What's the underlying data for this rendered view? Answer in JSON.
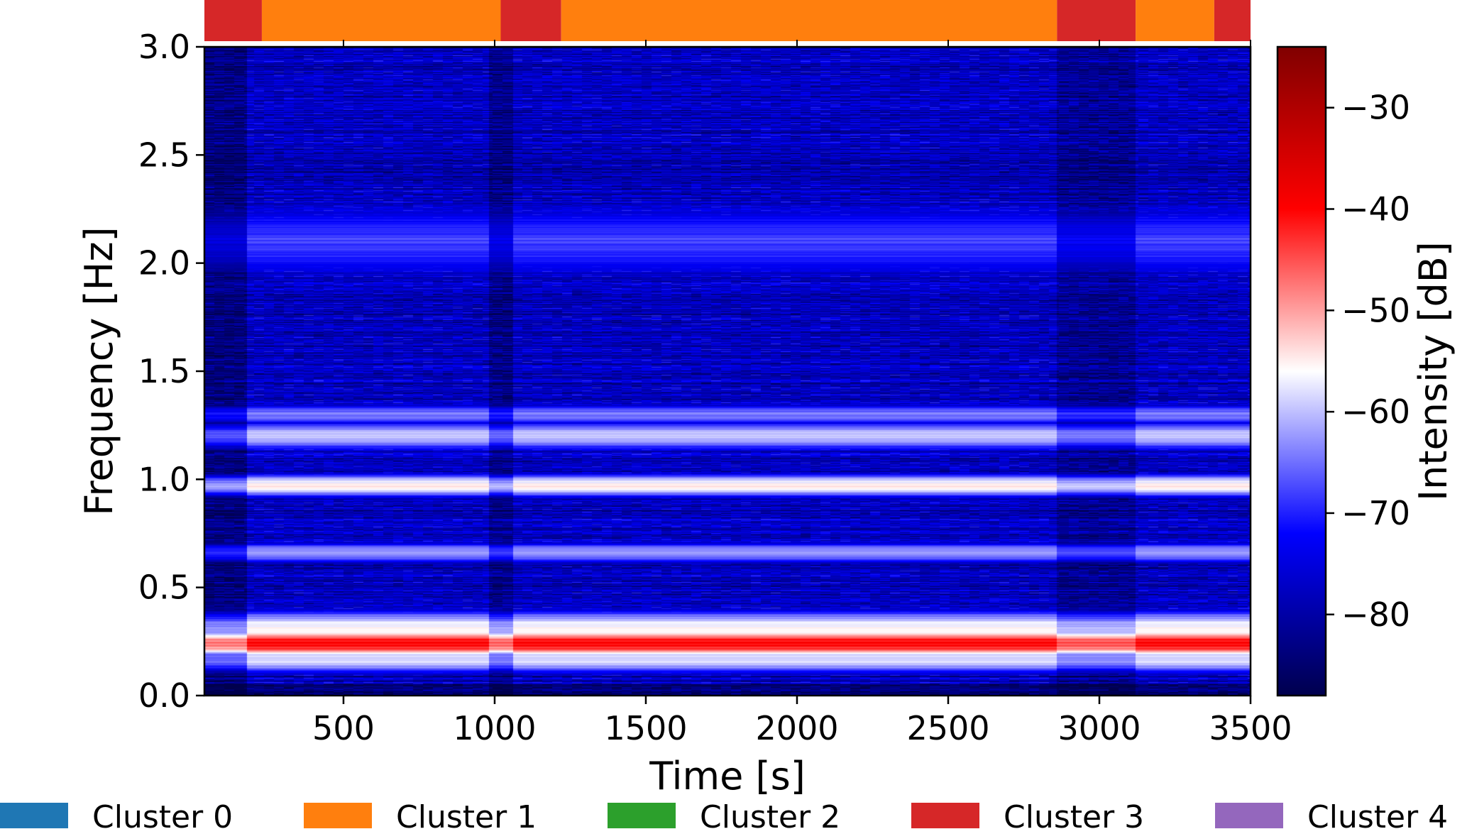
{
  "chart_data": {
    "type": "heatmap",
    "subtype": "spectrogram",
    "xlabel": "Time [s]",
    "ylabel": "Frequency [Hz]",
    "colorbar_label": "Intensity [dB]",
    "colormap": "seismic",
    "xlim": [
      40,
      3500
    ],
    "ylim": [
      0,
      3.0
    ],
    "color_range": [
      -88,
      -24
    ],
    "x_ticks": [
      500,
      1000,
      1500,
      2000,
      2500,
      3000,
      3500
    ],
    "y_ticks": [
      0.0,
      0.5,
      1.0,
      1.5,
      2.0,
      2.5,
      3.0
    ],
    "colorbar_ticks": [
      -80,
      -70,
      -60,
      -50,
      -40,
      -30
    ],
    "x_tick_labels": [
      "500",
      "1000",
      "1500",
      "2000",
      "2500",
      "3000",
      "3500"
    ],
    "y_tick_labels": [
      "0.0",
      "0.5",
      "1.0",
      "1.5",
      "2.0",
      "2.5",
      "3.0"
    ],
    "colorbar_tick_labels": [
      "−80",
      "−70",
      "−60",
      "−50",
      "−40",
      "−30"
    ],
    "bands": [
      {
        "freq": 0.24,
        "db": -40,
        "width": 0.03
      },
      {
        "freq": 0.3,
        "db": -55,
        "width": 0.05
      },
      {
        "freq": 0.17,
        "db": -58,
        "width": 0.04
      },
      {
        "freq": 0.97,
        "db": -55,
        "width": 0.03
      },
      {
        "freq": 0.66,
        "db": -62,
        "width": 0.03
      },
      {
        "freq": 1.2,
        "db": -60,
        "width": 0.04
      },
      {
        "freq": 1.3,
        "db": -64,
        "width": 0.03
      },
      {
        "freq": 2.1,
        "db": -68,
        "width": 0.12
      }
    ],
    "background_db": -78,
    "cluster_strip": [
      {
        "start": 40,
        "end": 230,
        "cluster": 3
      },
      {
        "start": 230,
        "end": 1020,
        "cluster": 1
      },
      {
        "start": 1020,
        "end": 1220,
        "cluster": 3
      },
      {
        "start": 1220,
        "end": 2860,
        "cluster": 1
      },
      {
        "start": 2860,
        "end": 3120,
        "cluster": 3
      },
      {
        "start": 3120,
        "end": 3380,
        "cluster": 1
      },
      {
        "start": 3380,
        "end": 3500,
        "cluster": 3
      }
    ],
    "legend": {
      "placement": "bottom",
      "entries": [
        {
          "label": "Cluster 0",
          "color": "#1f77b4"
        },
        {
          "label": "Cluster 1",
          "color": "#ff7f0e"
        },
        {
          "label": "Cluster 2",
          "color": "#2ca02c"
        },
        {
          "label": "Cluster 3",
          "color": "#d62728"
        },
        {
          "label": "Cluster 4",
          "color": "#9467bd"
        }
      ]
    }
  }
}
